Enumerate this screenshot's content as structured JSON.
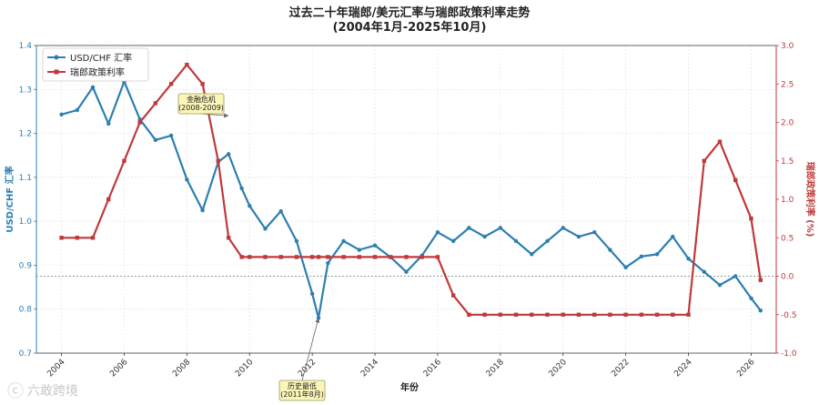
{
  "chart_data": {
    "type": "line",
    "title_line1": "过去二十年瑞郎/美元汇率与瑞郎政策利率走势",
    "title_line2": "(2004年1月-2025年10月)",
    "xlabel": "年份",
    "ylabel_left": "USD/CHF 汇率",
    "ylabel_right": "瑞郎政策利率 (%)",
    "xlim": [
      2003.2,
      2026.8
    ],
    "ylim_left": [
      0.7,
      1.4
    ],
    "ylim_right": [
      -1.0,
      3.0
    ],
    "xticks": [
      2004,
      2006,
      2008,
      2010,
      2012,
      2014,
      2016,
      2018,
      2020,
      2022,
      2024,
      2026
    ],
    "yticks_left": [
      0.7,
      0.8,
      0.9,
      1.0,
      1.1,
      1.2,
      1.3,
      1.4
    ],
    "yticks_left_labels": [
      "0.7",
      "0.8",
      "0.9",
      "1.0",
      "1.1",
      "1.2",
      "1.3",
      "1.4"
    ],
    "yticks_right": [
      -1.0,
      -0.5,
      0.0,
      0.5,
      1.0,
      1.5,
      2.0,
      2.5,
      3.0
    ],
    "yticks_right_labels": [
      "-1.0",
      "-0.5",
      "0.0",
      "0.5",
      "1.0",
      "1.5",
      "2.0",
      "2.5",
      "3.0"
    ],
    "grid": true,
    "legend_position": "top-left",
    "reference_line": {
      "axis": "right",
      "value": 0.0,
      "style": "dotted"
    },
    "series": [
      {
        "name": "USD/CHF 汇率",
        "axis": "left",
        "color": "#2c7fb0",
        "points": [
          [
            2004.0,
            1.243
          ],
          [
            2004.5,
            1.253
          ],
          [
            2005.0,
            1.305
          ],
          [
            2005.5,
            1.222
          ],
          [
            2006.0,
            1.318
          ],
          [
            2006.5,
            1.232
          ],
          [
            2007.0,
            1.185
          ],
          [
            2007.5,
            1.195
          ],
          [
            2008.0,
            1.095
          ],
          [
            2008.5,
            1.025
          ],
          [
            2009.0,
            1.135
          ],
          [
            2009.33,
            1.153
          ],
          [
            2009.75,
            1.075
          ],
          [
            2010.0,
            1.035
          ],
          [
            2010.5,
            0.983
          ],
          [
            2011.0,
            1.023
          ],
          [
            2011.5,
            0.955
          ],
          [
            2012.0,
            0.835
          ],
          [
            2012.2,
            0.78
          ],
          [
            2012.5,
            0.905
          ],
          [
            2013.0,
            0.955
          ],
          [
            2013.5,
            0.935
          ],
          [
            2014.0,
            0.945
          ],
          [
            2014.5,
            0.918
          ],
          [
            2015.0,
            0.885
          ],
          [
            2015.5,
            0.922
          ],
          [
            2016.0,
            0.975
          ],
          [
            2016.5,
            0.955
          ],
          [
            2017.0,
            0.985
          ],
          [
            2017.5,
            0.965
          ],
          [
            2018.0,
            0.985
          ],
          [
            2018.5,
            0.955
          ],
          [
            2019.0,
            0.925
          ],
          [
            2019.5,
            0.955
          ],
          [
            2020.0,
            0.985
          ],
          [
            2020.5,
            0.965
          ],
          [
            2021.0,
            0.975
          ],
          [
            2021.5,
            0.935
          ],
          [
            2022.0,
            0.895
          ],
          [
            2022.5,
            0.92
          ],
          [
            2023.0,
            0.925
          ],
          [
            2023.5,
            0.965
          ],
          [
            2024.0,
            0.915
          ],
          [
            2024.5,
            0.885
          ],
          [
            2025.0,
            0.855
          ],
          [
            2025.5,
            0.875
          ],
          [
            2026.0,
            0.825
          ],
          [
            2026.3,
            0.797
          ]
        ]
      },
      {
        "name": "瑞郎政策利率",
        "axis": "right",
        "color": "#c0393b",
        "points": [
          [
            2004.0,
            0.5
          ],
          [
            2004.5,
            0.5
          ],
          [
            2005.0,
            0.5
          ],
          [
            2005.5,
            1.0
          ],
          [
            2006.0,
            1.5
          ],
          [
            2006.5,
            2.0
          ],
          [
            2007.0,
            2.25
          ],
          [
            2007.5,
            2.5
          ],
          [
            2008.0,
            2.75
          ],
          [
            2008.5,
            2.5
          ],
          [
            2009.0,
            1.5
          ],
          [
            2009.33,
            0.5
          ],
          [
            2009.75,
            0.25
          ],
          [
            2010.0,
            0.25
          ],
          [
            2010.5,
            0.25
          ],
          [
            2011.0,
            0.25
          ],
          [
            2011.5,
            0.25
          ],
          [
            2012.0,
            0.25
          ],
          [
            2012.2,
            0.25
          ],
          [
            2012.5,
            0.25
          ],
          [
            2013.0,
            0.25
          ],
          [
            2013.5,
            0.25
          ],
          [
            2014.0,
            0.25
          ],
          [
            2014.5,
            0.25
          ],
          [
            2015.0,
            0.25
          ],
          [
            2015.5,
            0.25
          ],
          [
            2016.0,
            0.25
          ],
          [
            2016.5,
            -0.25
          ],
          [
            2017.0,
            -0.5
          ],
          [
            2017.5,
            -0.5
          ],
          [
            2018.0,
            -0.5
          ],
          [
            2018.5,
            -0.5
          ],
          [
            2019.0,
            -0.5
          ],
          [
            2019.5,
            -0.5
          ],
          [
            2020.0,
            -0.5
          ],
          [
            2020.5,
            -0.5
          ],
          [
            2021.0,
            -0.5
          ],
          [
            2021.5,
            -0.5
          ],
          [
            2022.0,
            -0.5
          ],
          [
            2022.5,
            -0.5
          ],
          [
            2023.0,
            -0.5
          ],
          [
            2023.5,
            -0.5
          ],
          [
            2024.0,
            -0.5
          ],
          [
            2024.5,
            1.5
          ],
          [
            2025.0,
            1.75
          ],
          [
            2025.5,
            1.25
          ],
          [
            2026.0,
            0.75
          ],
          [
            2026.3,
            -0.05
          ]
        ]
      }
    ],
    "annotations": [
      {
        "id": "crisis",
        "lines": [
          "金融危机",
          "(2008-2009)"
        ],
        "target_series": 0,
        "target": [
          2009.33,
          1.24
        ]
      },
      {
        "id": "low",
        "lines": [
          "历史最低",
          "(2011年8月)"
        ],
        "target_series": 0,
        "target": [
          2012.2,
          0.78
        ]
      }
    ]
  },
  "watermark": {
    "text": "六敢跨境"
  }
}
